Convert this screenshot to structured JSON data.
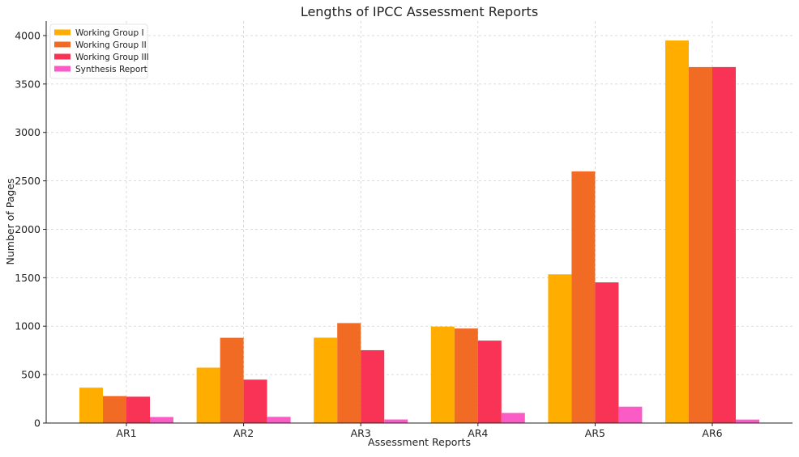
{
  "chart_data": {
    "type": "bar",
    "title": "Lengths of IPCC Assessment Reports",
    "xlabel": "Assessment Reports",
    "ylabel": "Number of Pages",
    "categories": [
      "AR1",
      "AR2",
      "AR3",
      "AR4",
      "AR5",
      "AR6"
    ],
    "ylim": [
      0,
      4150
    ],
    "yticks": [
      0,
      500,
      1000,
      1500,
      2000,
      2500,
      3000,
      3500,
      4000
    ],
    "grid": true,
    "legend_position": "top-left",
    "series": [
      {
        "name": "Working Group I",
        "color": "#FFAE00",
        "values": [
          365,
          572,
          881,
          996,
          1535,
          3949
        ]
      },
      {
        "name": "Working Group II",
        "color": "#F26B24",
        "values": [
          278,
          880,
          1032,
          976,
          2598,
          3675
        ]
      },
      {
        "name": "Working Group III",
        "color": "#F93355",
        "values": [
          272,
          448,
          752,
          851,
          1452,
          3675
        ]
      },
      {
        "name": "Synthesis Report",
        "color": "#FB5BC5",
        "values": [
          62,
          64,
          37,
          104,
          169,
          36
        ]
      }
    ]
  }
}
